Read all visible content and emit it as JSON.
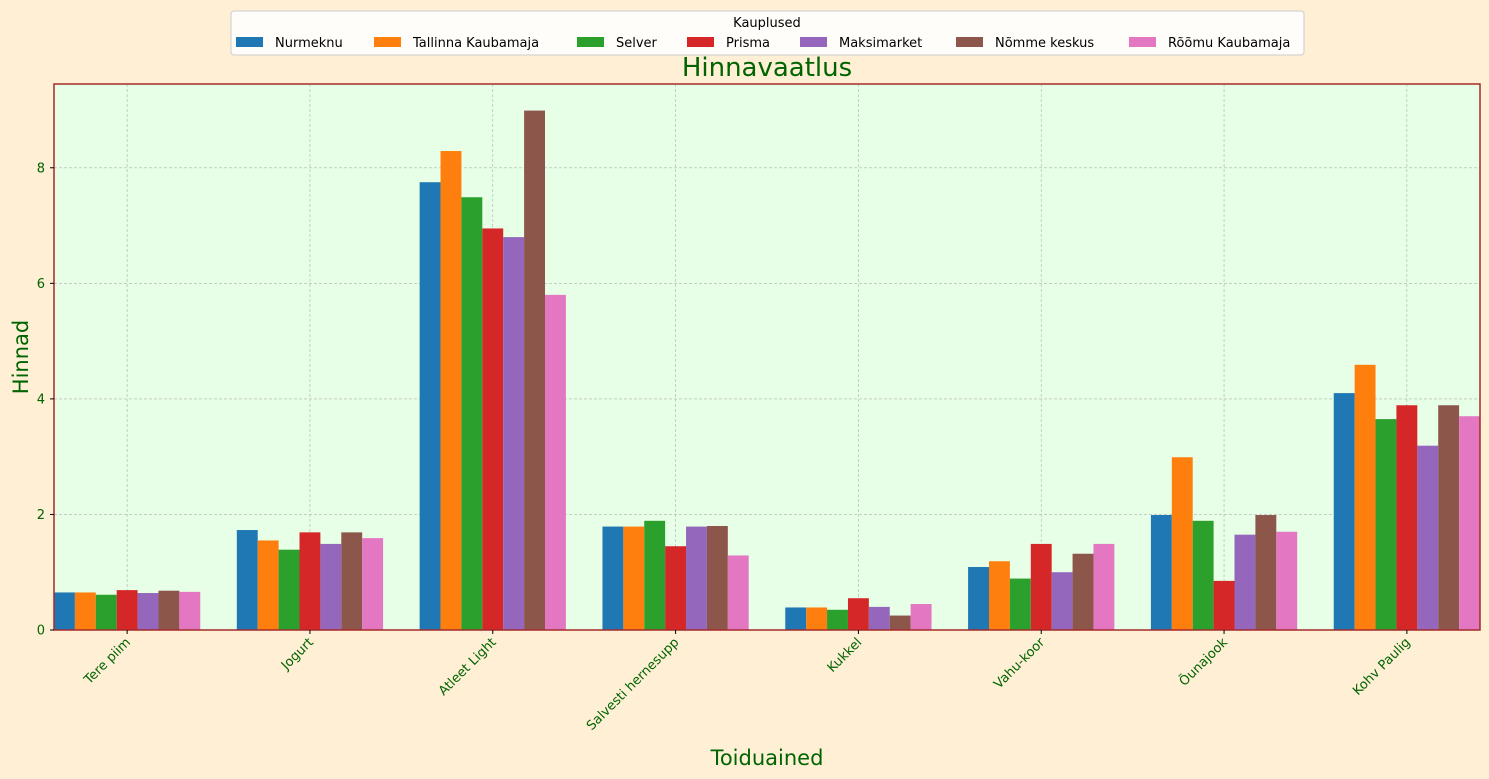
{
  "chart_data": {
    "type": "bar",
    "title": "Hinnavaatlus",
    "xlabel": "Toiduained",
    "ylabel": "Hinnad",
    "ylim": [
      0,
      9.45
    ],
    "yticks": [
      0,
      2,
      4,
      6,
      8
    ],
    "grid": true,
    "legend_title": "Kauplused",
    "legend_position": "top-center",
    "categories": [
      "Tere piim",
      "Jogurt",
      "Atleet Light",
      "Salvesti hernesupp",
      "Kukkel",
      "Vahu-koor",
      "Õunajook",
      "Kohv Paulig"
    ],
    "series": [
      {
        "name": "Nurmeknu",
        "color": "#1f77b4",
        "values": [
          0.65,
          1.73,
          7.75,
          1.79,
          0.39,
          1.09,
          1.99,
          4.1
        ]
      },
      {
        "name": "Tallinna Kaubamaja",
        "color": "#ff7f0e",
        "values": [
          0.65,
          1.55,
          8.29,
          1.79,
          0.39,
          1.19,
          2.99,
          4.59
        ]
      },
      {
        "name": "Selver",
        "color": "#2ca02c",
        "values": [
          0.61,
          1.39,
          7.49,
          1.89,
          0.35,
          0.89,
          1.89,
          3.65
        ]
      },
      {
        "name": "Prisma",
        "color": "#d62728",
        "values": [
          0.69,
          1.69,
          6.95,
          1.45,
          0.55,
          1.49,
          0.85,
          3.89
        ]
      },
      {
        "name": "Maksimarket",
        "color": "#9467bd",
        "values": [
          0.64,
          1.49,
          6.8,
          1.79,
          0.4,
          1.0,
          1.65,
          3.19
        ]
      },
      {
        "name": "Nõmme keskus",
        "color": "#8c564b",
        "values": [
          0.68,
          1.69,
          8.99,
          1.8,
          0.25,
          1.32,
          1.99,
          3.89
        ]
      },
      {
        "name": "Rõõmu Kaubamaja",
        "color": "#e377c2",
        "values": [
          0.66,
          1.59,
          5.8,
          1.29,
          0.45,
          1.49,
          1.7,
          3.7
        ]
      }
    ],
    "colors": {
      "page_background": "#ffefd5",
      "plot_background": "#e6ffe6",
      "plot_border": "#a52a2a",
      "text": "#006400",
      "grid": "#b0b0b0"
    }
  }
}
